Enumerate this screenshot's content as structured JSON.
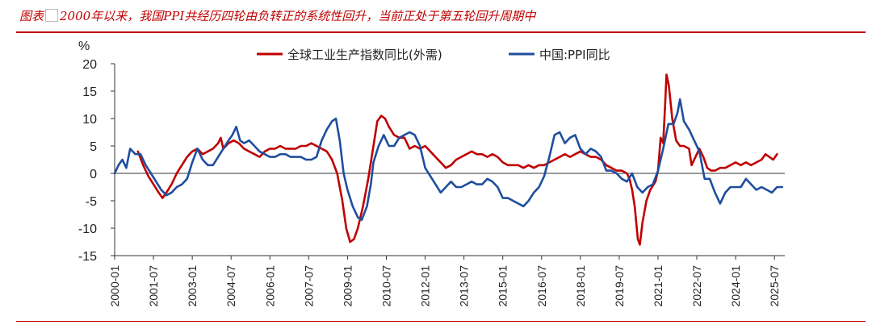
{
  "header": {
    "title_prefix": "图表",
    "title_rest": "2000年以来，我国PPI共经历四轮由负转正的系统性回升，当前正处于第五轮回升周期中"
  },
  "chart_data": {
    "type": "line",
    "title": "2000年以来，我国PPI共经历四轮由负转正的系统性回升，当前正处于第五轮回升周期中",
    "ylabel": "%",
    "xlabel": "",
    "ylim": [
      -15,
      20
    ],
    "yticks": [
      -15,
      -10,
      -5,
      0,
      5,
      10,
      15,
      20
    ],
    "xlim": [
      2000.0,
      2025.9
    ],
    "xticks": [
      {
        "label": "2000-01",
        "t": 2000.0
      },
      {
        "label": "2001-07",
        "t": 2001.5
      },
      {
        "label": "2003-01",
        "t": 2003.0
      },
      {
        "label": "2004-07",
        "t": 2004.5
      },
      {
        "label": "2006-01",
        "t": 2006.0
      },
      {
        "label": "2007-07",
        "t": 2007.5
      },
      {
        "label": "2009-01",
        "t": 2009.0
      },
      {
        "label": "2010-07",
        "t": 2010.5
      },
      {
        "label": "2012-01",
        "t": 2012.0
      },
      {
        "label": "2013-07",
        "t": 2013.5
      },
      {
        "label": "2015-01",
        "t": 2015.0
      },
      {
        "label": "2016-07",
        "t": 2016.5
      },
      {
        "label": "2018-01",
        "t": 2018.0
      },
      {
        "label": "2019-07",
        "t": 2019.5
      },
      {
        "label": "2021-01",
        "t": 2021.0
      },
      {
        "label": "2022-07",
        "t": 2022.5
      },
      {
        "label": "2024-01",
        "t": 2024.0
      },
      {
        "label": "2025-07",
        "t": 2025.5
      }
    ],
    "legend_position": "top-center",
    "series": [
      {
        "name": "全球工业生产指数同比(外需)",
        "color": "#c00000",
        "points": [
          [
            2000.9,
            4.0
          ],
          [
            2001.1,
            1.5
          ],
          [
            2001.3,
            -0.5
          ],
          [
            2001.5,
            -2.0
          ],
          [
            2001.7,
            -3.5
          ],
          [
            2001.85,
            -4.5
          ],
          [
            2002.0,
            -3.5
          ],
          [
            2002.2,
            -2.0
          ],
          [
            2002.4,
            0.0
          ],
          [
            2002.6,
            1.5
          ],
          [
            2002.8,
            3.0
          ],
          [
            2003.0,
            4.0
          ],
          [
            2003.2,
            4.5
          ],
          [
            2003.4,
            3.5
          ],
          [
            2003.6,
            4.0
          ],
          [
            2003.8,
            4.5
          ],
          [
            2004.0,
            5.5
          ],
          [
            2004.1,
            6.5
          ],
          [
            2004.2,
            4.5
          ],
          [
            2004.4,
            5.5
          ],
          [
            2004.6,
            6.0
          ],
          [
            2004.8,
            5.5
          ],
          [
            2005.0,
            4.5
          ],
          [
            2005.2,
            4.0
          ],
          [
            2005.4,
            3.5
          ],
          [
            2005.6,
            3.0
          ],
          [
            2005.8,
            4.0
          ],
          [
            2006.0,
            4.5
          ],
          [
            2006.2,
            4.5
          ],
          [
            2006.4,
            5.0
          ],
          [
            2006.6,
            4.5
          ],
          [
            2006.8,
            4.5
          ],
          [
            2007.0,
            4.5
          ],
          [
            2007.2,
            5.0
          ],
          [
            2007.4,
            5.0
          ],
          [
            2007.6,
            5.5
          ],
          [
            2007.8,
            5.0
          ],
          [
            2008.0,
            4.5
          ],
          [
            2008.2,
            4.0
          ],
          [
            2008.4,
            2.5
          ],
          [
            2008.6,
            0.0
          ],
          [
            2008.8,
            -5.0
          ],
          [
            2008.95,
            -10.0
          ],
          [
            2009.1,
            -12.5
          ],
          [
            2009.25,
            -12.0
          ],
          [
            2009.4,
            -10.0
          ],
          [
            2009.6,
            -6.0
          ],
          [
            2009.8,
            -1.0
          ],
          [
            2010.0,
            5.0
          ],
          [
            2010.15,
            9.5
          ],
          [
            2010.3,
            10.5
          ],
          [
            2010.45,
            10.0
          ],
          [
            2010.6,
            8.5
          ],
          [
            2010.8,
            7.0
          ],
          [
            2011.0,
            6.5
          ],
          [
            2011.2,
            6.5
          ],
          [
            2011.4,
            4.5
          ],
          [
            2011.6,
            5.0
          ],
          [
            2011.8,
            4.5
          ],
          [
            2012.0,
            5.0
          ],
          [
            2012.2,
            4.0
          ],
          [
            2012.4,
            3.0
          ],
          [
            2012.6,
            2.0
          ],
          [
            2012.8,
            1.0
          ],
          [
            2013.0,
            1.5
          ],
          [
            2013.2,
            2.5
          ],
          [
            2013.4,
            3.0
          ],
          [
            2013.6,
            3.5
          ],
          [
            2013.8,
            4.0
          ],
          [
            2014.0,
            3.5
          ],
          [
            2014.2,
            3.5
          ],
          [
            2014.4,
            3.0
          ],
          [
            2014.6,
            3.5
          ],
          [
            2014.8,
            3.0
          ],
          [
            2015.0,
            2.0
          ],
          [
            2015.2,
            1.5
          ],
          [
            2015.4,
            1.5
          ],
          [
            2015.6,
            1.5
          ],
          [
            2015.8,
            1.0
          ],
          [
            2016.0,
            1.5
          ],
          [
            2016.2,
            1.0
          ],
          [
            2016.4,
            1.5
          ],
          [
            2016.6,
            1.5
          ],
          [
            2016.8,
            2.0
          ],
          [
            2017.0,
            2.5
          ],
          [
            2017.2,
            3.0
          ],
          [
            2017.4,
            3.5
          ],
          [
            2017.6,
            3.0
          ],
          [
            2017.8,
            3.5
          ],
          [
            2018.0,
            4.0
          ],
          [
            2018.2,
            3.5
          ],
          [
            2018.4,
            3.0
          ],
          [
            2018.6,
            3.0
          ],
          [
            2018.8,
            2.5
          ],
          [
            2019.0,
            1.5
          ],
          [
            2019.2,
            1.0
          ],
          [
            2019.4,
            0.5
          ],
          [
            2019.6,
            0.5
          ],
          [
            2019.8,
            0.0
          ],
          [
            2019.9,
            -1.0
          ],
          [
            2020.0,
            -3.0
          ],
          [
            2020.1,
            -6.0
          ],
          [
            2020.22,
            -12.0
          ],
          [
            2020.3,
            -13.0
          ],
          [
            2020.4,
            -9.0
          ],
          [
            2020.55,
            -5.0
          ],
          [
            2020.7,
            -3.0
          ],
          [
            2020.9,
            -1.5
          ],
          [
            2021.0,
            0.5
          ],
          [
            2021.1,
            6.5
          ],
          [
            2021.2,
            5.5
          ],
          [
            2021.27,
            12.0
          ],
          [
            2021.33,
            18.0
          ],
          [
            2021.42,
            16.0
          ],
          [
            2021.55,
            10.0
          ],
          [
            2021.7,
            6.0
          ],
          [
            2021.85,
            5.0
          ],
          [
            2022.0,
            5.0
          ],
          [
            2022.2,
            4.5
          ],
          [
            2022.3,
            1.5
          ],
          [
            2022.45,
            3.0
          ],
          [
            2022.6,
            4.5
          ],
          [
            2022.75,
            3.0
          ],
          [
            2022.9,
            1.0
          ],
          [
            2023.05,
            0.5
          ],
          [
            2023.2,
            0.5
          ],
          [
            2023.4,
            1.0
          ],
          [
            2023.6,
            1.0
          ],
          [
            2023.8,
            1.5
          ],
          [
            2024.0,
            2.0
          ],
          [
            2024.2,
            1.5
          ],
          [
            2024.4,
            2.0
          ],
          [
            2024.6,
            1.5
          ],
          [
            2024.8,
            2.0
          ],
          [
            2025.0,
            2.5
          ],
          [
            2025.15,
            3.5
          ],
          [
            2025.3,
            3.0
          ],
          [
            2025.45,
            2.5
          ],
          [
            2025.6,
            3.5
          ]
        ]
      },
      {
        "name": "中国:PPI同比",
        "color": "#1f4e9e",
        "points": [
          [
            2000.0,
            0.0
          ],
          [
            2000.15,
            1.5
          ],
          [
            2000.3,
            2.5
          ],
          [
            2000.45,
            1.0
          ],
          [
            2000.6,
            4.5
          ],
          [
            2000.8,
            3.5
          ],
          [
            2001.0,
            3.5
          ],
          [
            2001.2,
            1.5
          ],
          [
            2001.4,
            0.0
          ],
          [
            2001.6,
            -1.5
          ],
          [
            2001.8,
            -3.0
          ],
          [
            2002.0,
            -4.0
          ],
          [
            2002.2,
            -3.5
          ],
          [
            2002.4,
            -2.5
          ],
          [
            2002.6,
            -2.0
          ],
          [
            2002.8,
            -1.0
          ],
          [
            2003.0,
            2.0
          ],
          [
            2003.2,
            4.5
          ],
          [
            2003.4,
            2.5
          ],
          [
            2003.6,
            1.5
          ],
          [
            2003.8,
            1.5
          ],
          [
            2004.0,
            3.0
          ],
          [
            2004.2,
            4.5
          ],
          [
            2004.4,
            6.0
          ],
          [
            2004.55,
            7.0
          ],
          [
            2004.7,
            8.5
          ],
          [
            2004.85,
            6.0
          ],
          [
            2005.0,
            5.5
          ],
          [
            2005.2,
            6.0
          ],
          [
            2005.4,
            5.0
          ],
          [
            2005.6,
            4.0
          ],
          [
            2005.8,
            3.5
          ],
          [
            2006.0,
            3.0
          ],
          [
            2006.2,
            3.0
          ],
          [
            2006.4,
            3.5
          ],
          [
            2006.6,
            3.5
          ],
          [
            2006.8,
            3.0
          ],
          [
            2007.0,
            3.0
          ],
          [
            2007.2,
            3.0
          ],
          [
            2007.4,
            2.5
          ],
          [
            2007.6,
            2.5
          ],
          [
            2007.8,
            3.0
          ],
          [
            2008.0,
            6.0
          ],
          [
            2008.2,
            8.0
          ],
          [
            2008.4,
            9.5
          ],
          [
            2008.55,
            10.0
          ],
          [
            2008.7,
            6.0
          ],
          [
            2008.85,
            0.0
          ],
          [
            2009.0,
            -3.0
          ],
          [
            2009.2,
            -6.0
          ],
          [
            2009.4,
            -8.0
          ],
          [
            2009.55,
            -8.5
          ],
          [
            2009.75,
            -6.0
          ],
          [
            2009.9,
            -2.0
          ],
          [
            2010.0,
            2.0
          ],
          [
            2010.2,
            5.0
          ],
          [
            2010.4,
            7.0
          ],
          [
            2010.6,
            5.0
          ],
          [
            2010.8,
            5.0
          ],
          [
            2011.0,
            6.5
          ],
          [
            2011.2,
            7.0
          ],
          [
            2011.4,
            7.5
          ],
          [
            2011.6,
            7.0
          ],
          [
            2011.8,
            5.0
          ],
          [
            2012.0,
            1.0
          ],
          [
            2012.2,
            -0.5
          ],
          [
            2012.4,
            -2.0
          ],
          [
            2012.6,
            -3.5
          ],
          [
            2012.8,
            -2.5
          ],
          [
            2013.0,
            -1.5
          ],
          [
            2013.2,
            -2.5
          ],
          [
            2013.4,
            -2.5
          ],
          [
            2013.6,
            -2.0
          ],
          [
            2013.8,
            -1.5
          ],
          [
            2014.0,
            -2.0
          ],
          [
            2014.2,
            -2.0
          ],
          [
            2014.4,
            -1.0
          ],
          [
            2014.6,
            -1.5
          ],
          [
            2014.8,
            -2.5
          ],
          [
            2015.0,
            -4.5
          ],
          [
            2015.2,
            -4.5
          ],
          [
            2015.4,
            -5.0
          ],
          [
            2015.6,
            -5.5
          ],
          [
            2015.8,
            -6.0
          ],
          [
            2016.0,
            -5.0
          ],
          [
            2016.2,
            -3.5
          ],
          [
            2016.4,
            -2.5
          ],
          [
            2016.6,
            -0.5
          ],
          [
            2016.8,
            3.0
          ],
          [
            2017.0,
            7.0
          ],
          [
            2017.2,
            7.5
          ],
          [
            2017.4,
            5.5
          ],
          [
            2017.6,
            6.5
          ],
          [
            2017.8,
            7.0
          ],
          [
            2018.0,
            4.5
          ],
          [
            2018.2,
            3.5
          ],
          [
            2018.4,
            4.5
          ],
          [
            2018.6,
            4.0
          ],
          [
            2018.8,
            3.0
          ],
          [
            2019.0,
            0.5
          ],
          [
            2019.2,
            0.5
          ],
          [
            2019.4,
            0.0
          ],
          [
            2019.6,
            -1.0
          ],
          [
            2019.8,
            -1.5
          ],
          [
            2020.0,
            0.0
          ],
          [
            2020.2,
            -2.5
          ],
          [
            2020.4,
            -3.5
          ],
          [
            2020.6,
            -2.5
          ],
          [
            2020.8,
            -2.0
          ],
          [
            2021.0,
            0.5
          ],
          [
            2021.2,
            4.5
          ],
          [
            2021.4,
            9.0
          ],
          [
            2021.6,
            9.0
          ],
          [
            2021.75,
            11.0
          ],
          [
            2021.85,
            13.5
          ],
          [
            2022.0,
            9.5
          ],
          [
            2022.2,
            8.0
          ],
          [
            2022.4,
            6.0
          ],
          [
            2022.6,
            4.0
          ],
          [
            2022.8,
            -1.0
          ],
          [
            2023.0,
            -1.0
          ],
          [
            2023.2,
            -3.5
          ],
          [
            2023.4,
            -5.5
          ],
          [
            2023.6,
            -3.5
          ],
          [
            2023.8,
            -2.5
          ],
          [
            2024.0,
            -2.5
          ],
          [
            2024.2,
            -2.5
          ],
          [
            2024.4,
            -1.0
          ],
          [
            2024.6,
            -2.0
          ],
          [
            2024.8,
            -3.0
          ],
          [
            2025.0,
            -2.5
          ],
          [
            2025.2,
            -3.0
          ],
          [
            2025.4,
            -3.5
          ],
          [
            2025.6,
            -2.5
          ],
          [
            2025.8,
            -2.5
          ]
        ]
      }
    ]
  }
}
